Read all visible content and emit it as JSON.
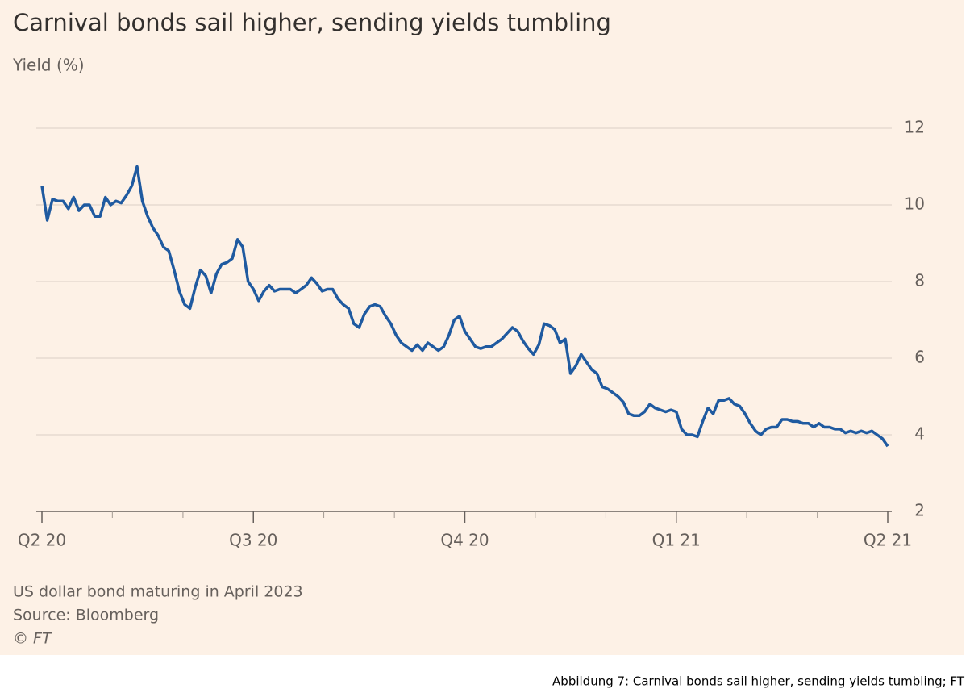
{
  "chart_data": {
    "type": "line",
    "title": "Carnival bonds sail higher, sending yields tumbling",
    "y_label": "Yield (%)",
    "notes": [
      "US dollar bond maturing in April 2023",
      "Source: Bloomberg",
      "© FT"
    ],
    "caption": "Abbildung 7: Carnival bonds sail higher, sending yields tumbling; FT",
    "xlim": [
      0,
      4
    ],
    "xticks": [
      {
        "value": 0,
        "label": "Q2 20"
      },
      {
        "value": 1,
        "label": "Q3 20"
      },
      {
        "value": 2,
        "label": "Q4 20"
      },
      {
        "value": 3,
        "label": "Q1 21"
      },
      {
        "value": 4,
        "label": "Q2 21"
      }
    ],
    "xminor_ticks": [
      0.333,
      0.667,
      1.333,
      1.667,
      2.333,
      2.667,
      3.333,
      3.667
    ],
    "ylim": [
      2,
      12
    ],
    "yticks": [
      2,
      4,
      6,
      8,
      10,
      12
    ],
    "grid": true,
    "series": [
      {
        "color": "#1f5aa0",
        "x": [
          0,
          0.025,
          0.05,
          0.075,
          0.1,
          0.125,
          0.15,
          0.175,
          0.2,
          0.225,
          0.25,
          0.275,
          0.3,
          0.325,
          0.35,
          0.375,
          0.4,
          0.425,
          0.45,
          0.475,
          0.5,
          0.525,
          0.55,
          0.575,
          0.6,
          0.625,
          0.65,
          0.675,
          0.7,
          0.725,
          0.75,
          0.775,
          0.8,
          0.825,
          0.85,
          0.875,
          0.9,
          0.925,
          0.95,
          0.975,
          1,
          1.025,
          1.05,
          1.075,
          1.1,
          1.125,
          1.15,
          1.175,
          1.2,
          1.225,
          1.25,
          1.275,
          1.3,
          1.325,
          1.35,
          1.375,
          1.4,
          1.425,
          1.45,
          1.475,
          1.5,
          1.525,
          1.55,
          1.575,
          1.6,
          1.625,
          1.65,
          1.675,
          1.7,
          1.725,
          1.75,
          1.775,
          1.8,
          1.825,
          1.85,
          1.875,
          1.9,
          1.925,
          1.95,
          1.975,
          2,
          2.025,
          2.05,
          2.075,
          2.1,
          2.125,
          2.15,
          2.175,
          2.2,
          2.225,
          2.25,
          2.275,
          2.3,
          2.325,
          2.35,
          2.375,
          2.4,
          2.425,
          2.45,
          2.475,
          2.5,
          2.525,
          2.55,
          2.575,
          2.6,
          2.625,
          2.65,
          2.675,
          2.7,
          2.725,
          2.75,
          2.775,
          2.8,
          2.825,
          2.85,
          2.875,
          2.9,
          2.925,
          2.95,
          2.975,
          3,
          3.025,
          3.05,
          3.075,
          3.1,
          3.125,
          3.15,
          3.175,
          3.2,
          3.225,
          3.25,
          3.275,
          3.3,
          3.325,
          3.35,
          3.375,
          3.4,
          3.425,
          3.45,
          3.475,
          3.5,
          3.525,
          3.55,
          3.575,
          3.6,
          3.625,
          3.65,
          3.675,
          3.7,
          3.725,
          3.75,
          3.775,
          3.8,
          3.825,
          3.85,
          3.875,
          3.9,
          3.925,
          3.95,
          3.975,
          4
        ],
        "values": [
          10.5,
          9.6,
          10.15,
          10.1,
          10.1,
          9.9,
          10.2,
          9.85,
          10.0,
          10.0,
          9.7,
          9.7,
          10.2,
          10.0,
          10.1,
          10.05,
          10.25,
          10.5,
          11.0,
          10.1,
          9.7,
          9.4,
          9.2,
          8.9,
          8.8,
          8.3,
          7.75,
          7.4,
          7.3,
          7.85,
          8.3,
          8.15,
          7.7,
          8.2,
          8.45,
          8.5,
          8.6,
          9.1,
          8.9,
          8.0,
          7.8,
          7.5,
          7.75,
          7.9,
          7.75,
          7.8,
          7.8,
          7.8,
          7.7,
          7.8,
          7.9,
          8.1,
          7.95,
          7.75,
          7.8,
          7.8,
          7.55,
          7.4,
          7.3,
          6.9,
          6.8,
          7.15,
          7.35,
          7.4,
          7.35,
          7.1,
          6.9,
          6.6,
          6.4,
          6.3,
          6.2,
          6.35,
          6.2,
          6.4,
          6.3,
          6.2,
          6.3,
          6.6,
          7.0,
          7.1,
          6.7,
          6.5,
          6.3,
          6.25,
          6.3,
          6.3,
          6.4,
          6.5,
          6.65,
          6.8,
          6.7,
          6.45,
          6.25,
          6.1,
          6.35,
          6.9,
          6.85,
          6.75,
          6.4,
          6.5,
          5.6,
          5.8,
          6.1,
          5.9,
          5.7,
          5.6,
          5.25,
          5.2,
          5.1,
          5.0,
          4.85,
          4.55,
          4.5,
          4.5,
          4.6,
          4.8,
          4.7,
          4.65,
          4.6,
          4.65,
          4.6,
          4.15,
          4.0,
          4.0,
          3.95,
          4.35,
          4.7,
          4.55,
          4.9,
          4.9,
          4.95,
          4.8,
          4.75,
          4.55,
          4.3,
          4.1,
          4.0,
          4.15,
          4.2,
          4.2,
          4.4,
          4.4,
          4.35,
          4.35,
          4.3,
          4.3,
          4.2,
          4.3,
          4.2,
          4.2,
          4.15,
          4.15,
          4.05,
          4.1,
          4.05,
          4.1,
          4.05,
          4.1,
          4.0,
          3.9,
          3.7
        ]
      }
    ]
  }
}
